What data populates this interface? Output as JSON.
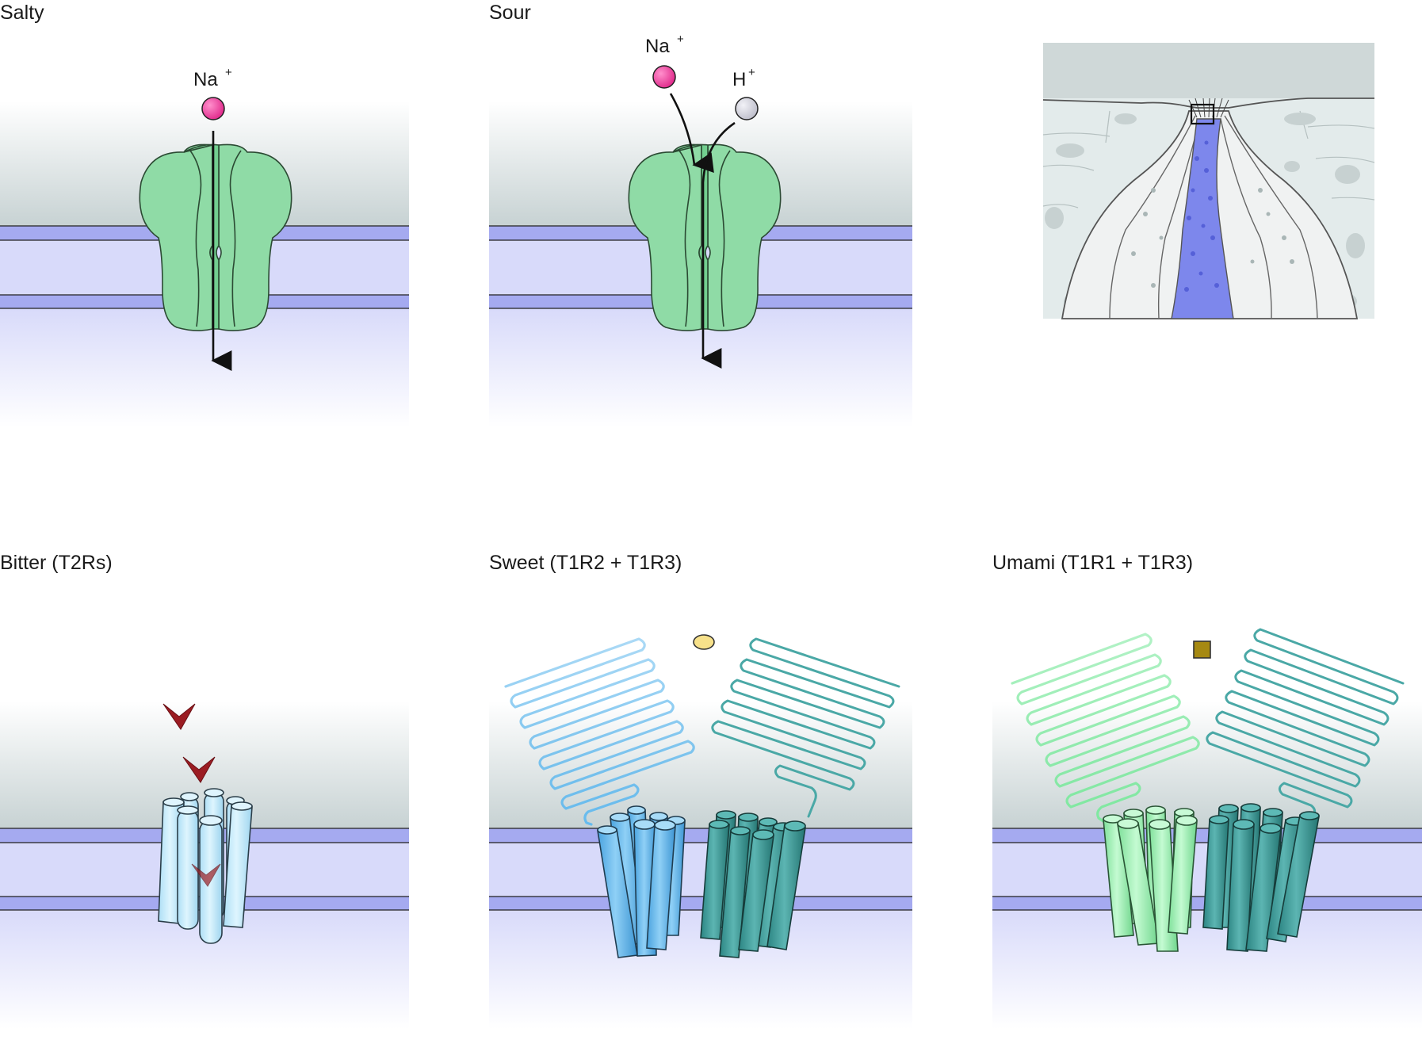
{
  "panels": {
    "salty": {
      "title": "Salty",
      "ion": "Na",
      "ion_sup": "+"
    },
    "sour": {
      "title": "Sour",
      "ion1": "Na",
      "ion1_sup": "+",
      "ion2": "H",
      "ion2_sup": "+"
    },
    "bitter": {
      "title": "Bitter (T2Rs)"
    },
    "sweet": {
      "title": "Sweet (T1R2 + T1R3)"
    },
    "umami": {
      "title": "Umami (T1R1 + T1R3)"
    }
  },
  "colors": {
    "channel": "#8fdba6",
    "membrane_band": "#a5aaf0",
    "membrane_core": "#d8dafa",
    "na_ion": "#ee3f9a",
    "h_ion": "#d4d4de",
    "t2r": "#c8ecfb",
    "t1r2": "#66bbee",
    "t1r3": "#3f9e9c",
    "t1r1": "#9ef2b4",
    "bitter_ligand": "#9b1c22",
    "sweet_ligand": "#f7e18a",
    "umami_ligand": "#a68912"
  }
}
